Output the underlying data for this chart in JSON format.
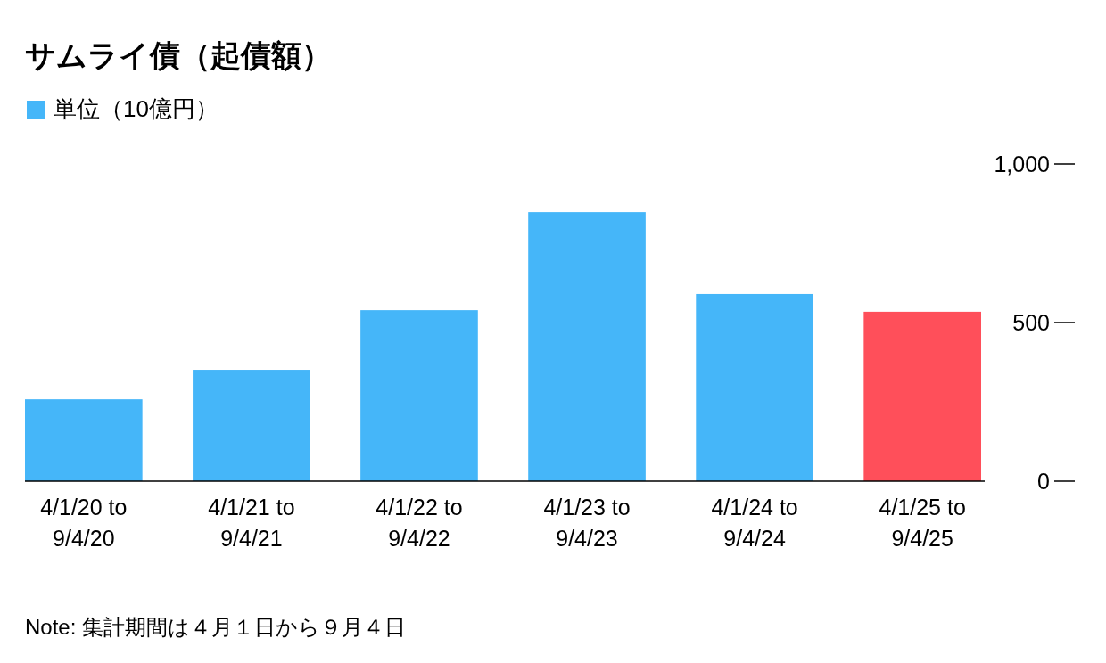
{
  "chart_data": {
    "type": "bar",
    "title": "サムライ債（起債額）",
    "categories": [
      "4/1/20 to 9/4/20",
      "4/1/21 to 9/4/21",
      "4/1/22 to 9/4/22",
      "4/1/23 to 9/4/23",
      "4/1/24 to 9/4/24",
      "4/1/25 to 9/4/25"
    ],
    "series": [
      {
        "name": "単位（10億円）",
        "color": "#45b6f9",
        "colors": [
          "#45b6f9",
          "#45b6f9",
          "#45b6f9",
          "#45b6f9",
          "#45b6f9",
          "#ff4f5a"
        ],
        "values": [
          258,
          351,
          539,
          848,
          590,
          534
        ]
      }
    ],
    "ylim": [
      0,
      1000
    ],
    "yticks": [
      {
        "value": 0,
        "label": "0"
      },
      {
        "value": 500,
        "label": "500"
      },
      {
        "value": 1000,
        "label": "1,000"
      }
    ],
    "legend": "top left",
    "annotations": [
      "Note: 集計期間は４月１日から９月４日"
    ]
  }
}
